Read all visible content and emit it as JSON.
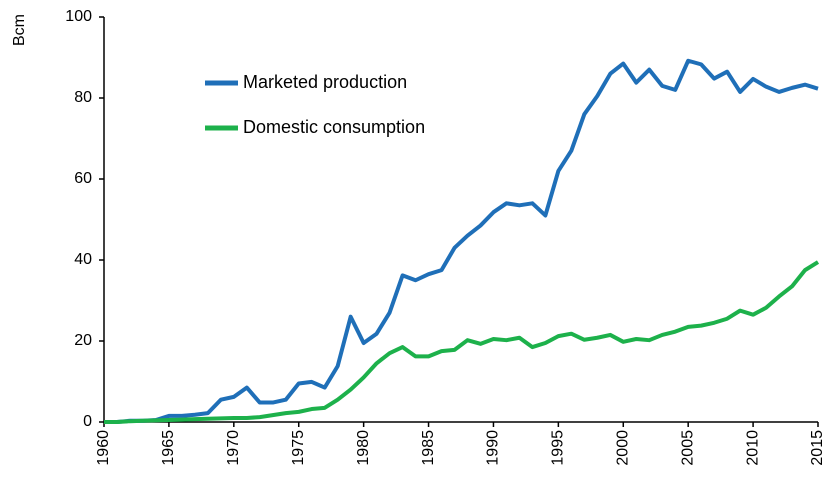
{
  "chart_data": {
    "type": "line",
    "y_label": "Bcm",
    "x": [
      1960,
      1961,
      1962,
      1963,
      1964,
      1965,
      1966,
      1967,
      1968,
      1969,
      1970,
      1971,
      1972,
      1973,
      1974,
      1975,
      1976,
      1977,
      1978,
      1979,
      1980,
      1981,
      1982,
      1983,
      1984,
      1985,
      1986,
      1987,
      1988,
      1989,
      1990,
      1991,
      1992,
      1993,
      1994,
      1995,
      1996,
      1997,
      1998,
      1999,
      2000,
      2001,
      2002,
      2003,
      2004,
      2005,
      2006,
      2007,
      2008,
      2009,
      2010,
      2011,
      2012,
      2013,
      2014,
      2015
    ],
    "series": [
      {
        "name": "Marketed production",
        "color": "#1f6fb8",
        "values": [
          0,
          0,
          0.3,
          0.3,
          0.5,
          1.5,
          1.5,
          1.8,
          2.2,
          5.5,
          6.2,
          8.5,
          4.8,
          4.8,
          5.5,
          9.5,
          9.9,
          8.5,
          13.8,
          26,
          19.5,
          21.8,
          27,
          36.2,
          35,
          36.5,
          37.5,
          43,
          46,
          48.5,
          51.8,
          54,
          53.5,
          54,
          51,
          62,
          67,
          76,
          80.5,
          86,
          88.5,
          83.8,
          87,
          83,
          82,
          89.2,
          88.3,
          84.8,
          86.5,
          81.5,
          84.7,
          82.8,
          81.5,
          82.5,
          83.3,
          82.3
        ]
      },
      {
        "name": "Domestic consumption",
        "color": "#1db14b",
        "values": [
          0,
          0,
          0.2,
          0.3,
          0.4,
          0.5,
          0.6,
          0.7,
          0.8,
          0.9,
          1,
          1,
          1.2,
          1.7,
          2.2,
          2.5,
          3.2,
          3.5,
          5.5,
          8,
          11,
          14.5,
          17,
          18.5,
          16.2,
          16.2,
          17.5,
          17.8,
          20.2,
          19.3,
          20.5,
          20.2,
          20.8,
          18.5,
          19.5,
          21.2,
          21.8,
          20.3,
          20.8,
          21.5,
          19.8,
          20.5,
          20.2,
          21.5,
          22.3,
          23.5,
          23.8,
          24.5,
          25.5,
          27.5,
          26.5,
          28.2,
          31,
          33.5,
          37.5,
          39.5
        ]
      }
    ],
    "xlim": [
      1960,
      2015
    ],
    "xticks": [
      1960,
      1965,
      1970,
      1975,
      1980,
      1985,
      1990,
      1995,
      2000,
      2005,
      2010,
      2015
    ],
    "ylim": [
      0,
      100
    ],
    "yticks": [
      0,
      20,
      40,
      60,
      80,
      100
    ],
    "legend": "upper left",
    "grid": false
  }
}
